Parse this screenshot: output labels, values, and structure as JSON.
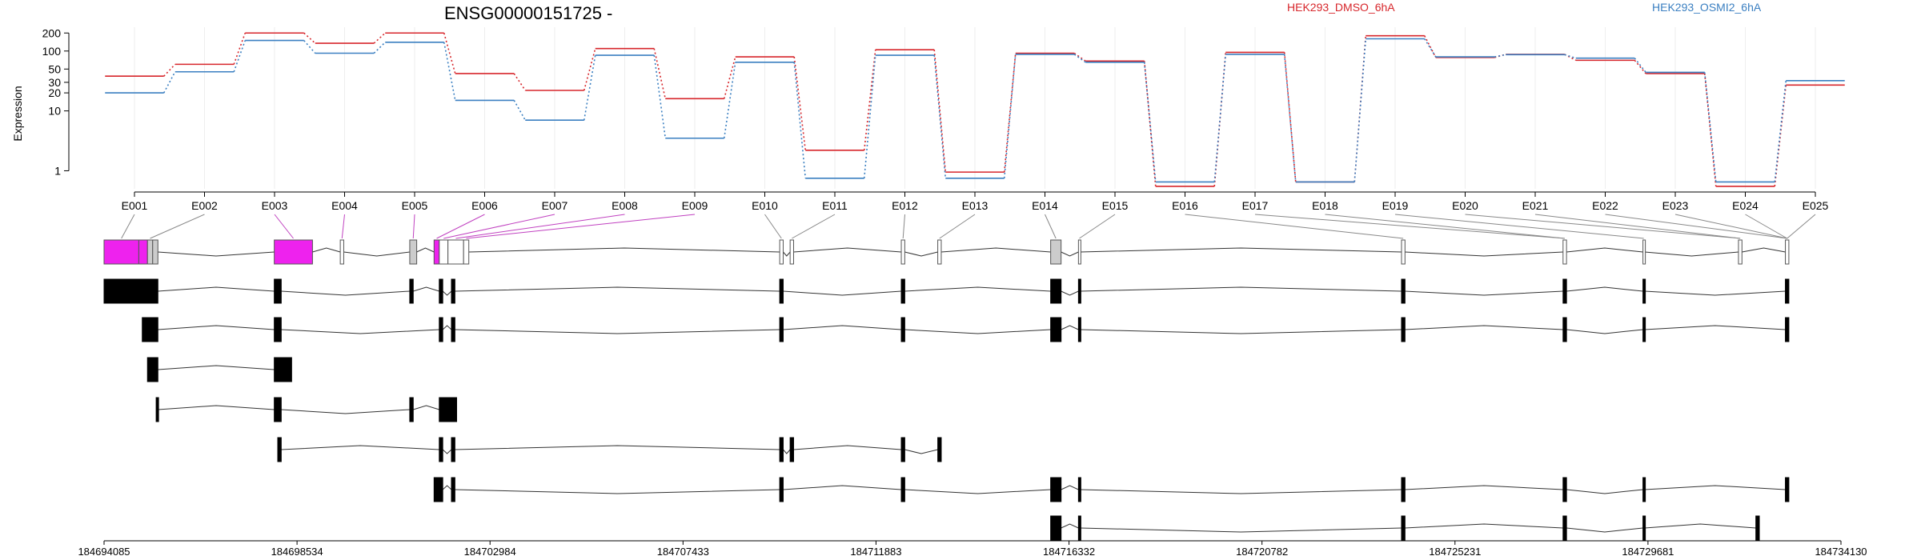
{
  "chart_data": {
    "type": "line",
    "title": "ENSG00000151725 -",
    "ylabel": "Expression",
    "y_scale": "log",
    "y_ticks": [
      "200",
      "100",
      "50",
      "30",
      "20",
      "10",
      "1"
    ],
    "ylim": [
      0.5,
      250
    ],
    "categories": [
      "E001",
      "E002",
      "E003",
      "E004",
      "E005",
      "E006",
      "E007",
      "E008",
      "E009",
      "E010",
      "E011",
      "E012",
      "E013",
      "E014",
      "E015",
      "E016",
      "E017",
      "E018",
      "E019",
      "E020",
      "E021",
      "E022",
      "E023",
      "E024",
      "E025"
    ],
    "series": [
      {
        "name": "HEK293_DMSO_6hA",
        "color": "#d7262b",
        "values": [
          38,
          60,
          200,
          135,
          200,
          42,
          22,
          110,
          16,
          80,
          2.2,
          105,
          0.95,
          92,
          68,
          0.55,
          95,
          0.65,
          180,
          78,
          88,
          70,
          42,
          0.55,
          27
        ]
      },
      {
        "name": "HEK293_OSMI2_6hA",
        "color": "#3a7fc1",
        "values": [
          20,
          45,
          150,
          92,
          140,
          15,
          7,
          85,
          3.5,
          65,
          0.75,
          85,
          0.75,
          88,
          65,
          0.65,
          88,
          0.65,
          160,
          80,
          87,
          76,
          44,
          0.65,
          32
        ]
      }
    ],
    "genomic_coordinates": [
      "184694085",
      "184698534",
      "184702984",
      "184707433",
      "184711883",
      "184716332",
      "184720782",
      "184725231",
      "184729681",
      "184734130"
    ]
  },
  "legend": {
    "dmso": "HEK293_DMSO_6hA",
    "osmi": "HEK293_OSMI2_6hA"
  }
}
